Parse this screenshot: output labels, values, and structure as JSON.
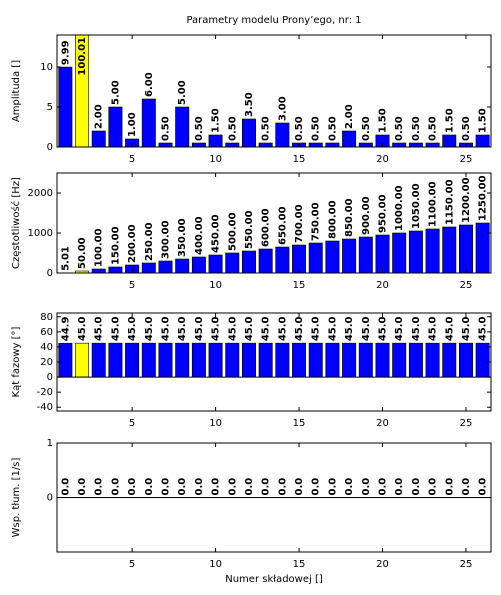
{
  "chart_data": [
    {
      "type": "bar",
      "title": "Parametry modelu Prony’ego, nr: 1",
      "ylabel": "Amplituda []",
      "x": [
        1,
        2,
        3,
        4,
        5,
        6,
        7,
        8,
        9,
        10,
        11,
        12,
        13,
        14,
        15,
        16,
        17,
        18,
        19,
        20,
        21,
        22,
        23,
        24,
        25,
        26
      ],
      "values": [
        9.99,
        100.01,
        2,
        5,
        1,
        6,
        0.5,
        5,
        0.5,
        1.5,
        0.5,
        3.5,
        0.5,
        3,
        0.5,
        0.5,
        0.5,
        2,
        0.5,
        1.5,
        0.5,
        0.5,
        0.5,
        1.5,
        0.5,
        1.5
      ],
      "value_labels": [
        "9.99",
        "100.01",
        "2.00",
        "5.00",
        "1.00",
        "6.00",
        "0.50",
        "5.00",
        "0.50",
        "1.50",
        "0.50",
        "3.50",
        "0.50",
        "3.00",
        "0.50",
        "0.50",
        "0.50",
        "2.00",
        "0.50",
        "1.50",
        "0.50",
        "0.50",
        "0.50",
        "1.50",
        "0.50",
        "1.50"
      ],
      "colors": [
        "#0000ff",
        "#ffff00",
        "#0000ff",
        "#0000ff",
        "#0000ff",
        "#0000ff",
        "#0000ff",
        "#0000ff",
        "#0000ff",
        "#0000ff",
        "#0000ff",
        "#0000ff",
        "#0000ff",
        "#0000ff",
        "#0000ff",
        "#0000ff",
        "#0000ff",
        "#0000ff",
        "#0000ff",
        "#0000ff",
        "#0000ff",
        "#0000ff",
        "#0000ff",
        "#0000ff",
        "#0000ff",
        "#0000ff"
      ],
      "xlim": [
        0.5,
        26.5
      ],
      "xticks": [
        5,
        10,
        15,
        20,
        25
      ],
      "ylim": [
        0,
        14
      ],
      "yticks": [
        0,
        5,
        10
      ]
    },
    {
      "type": "bar",
      "ylabel": "Częstotliwość [Hz]",
      "x": [
        1,
        2,
        3,
        4,
        5,
        6,
        7,
        8,
        9,
        10,
        11,
        12,
        13,
        14,
        15,
        16,
        17,
        18,
        19,
        20,
        21,
        22,
        23,
        24,
        25,
        26
      ],
      "values": [
        5.01,
        50,
        100,
        150,
        200,
        250,
        300,
        350,
        400,
        450,
        500,
        550,
        600,
        650,
        700,
        750,
        800,
        850,
        900,
        950,
        1000,
        1050,
        1100,
        1150,
        1200,
        1250
      ],
      "value_labels": [
        "5.01",
        "50.00",
        "100.00",
        "150.00",
        "200.00",
        "250.00",
        "300.00",
        "350.00",
        "400.00",
        "450.00",
        "500.00",
        "550.00",
        "600.00",
        "650.00",
        "700.00",
        "750.00",
        "800.00",
        "850.00",
        "900.00",
        "950.00",
        "1000.00",
        "1050.00",
        "1100.00",
        "1150.00",
        "1200.00",
        "1250.00"
      ],
      "colors": [
        "#0000ff",
        "#ffff00",
        "#0000ff",
        "#0000ff",
        "#0000ff",
        "#0000ff",
        "#0000ff",
        "#0000ff",
        "#0000ff",
        "#0000ff",
        "#0000ff",
        "#0000ff",
        "#0000ff",
        "#0000ff",
        "#0000ff",
        "#0000ff",
        "#0000ff",
        "#0000ff",
        "#0000ff",
        "#0000ff",
        "#0000ff",
        "#0000ff",
        "#0000ff",
        "#0000ff",
        "#0000ff",
        "#0000ff"
      ],
      "xlim": [
        0.5,
        26.5
      ],
      "xticks": [
        5,
        10,
        15,
        20,
        25
      ],
      "ylim": [
        0,
        2500
      ],
      "yticks": [
        0,
        1000,
        2000
      ]
    },
    {
      "type": "bar",
      "ylabel": "Kąt fazowy [°]",
      "x": [
        1,
        2,
        3,
        4,
        5,
        6,
        7,
        8,
        9,
        10,
        11,
        12,
        13,
        14,
        15,
        16,
        17,
        18,
        19,
        20,
        21,
        22,
        23,
        24,
        25,
        26
      ],
      "values": [
        44.9,
        45,
        45,
        45,
        45,
        45,
        45,
        45,
        45,
        45,
        45,
        45,
        45,
        45,
        45,
        45,
        45,
        45,
        45,
        45,
        45,
        45,
        45,
        45,
        45,
        45
      ],
      "value_labels": [
        "44.9",
        "45.0",
        "45.0",
        "45.0",
        "45.0",
        "45.0",
        "45.0",
        "45.0",
        "45.0",
        "45.0",
        "45.0",
        "45.0",
        "45.0",
        "45.0",
        "45.0",
        "45.0",
        "45.0",
        "45.0",
        "45.0",
        "45.0",
        "45.0",
        "45.0",
        "45.0",
        "45.0",
        "45.0",
        "45.0"
      ],
      "colors": [
        "#0000ff",
        "#ffff00",
        "#0000ff",
        "#0000ff",
        "#0000ff",
        "#0000ff",
        "#0000ff",
        "#0000ff",
        "#0000ff",
        "#0000ff",
        "#0000ff",
        "#0000ff",
        "#0000ff",
        "#0000ff",
        "#0000ff",
        "#0000ff",
        "#0000ff",
        "#0000ff",
        "#0000ff",
        "#0000ff",
        "#0000ff",
        "#0000ff",
        "#0000ff",
        "#0000ff",
        "#0000ff",
        "#0000ff"
      ],
      "xlim": [
        0.5,
        26.5
      ],
      "xticks": [
        5,
        10,
        15,
        20,
        25
      ],
      "ylim": [
        -45,
        85
      ],
      "yticks": [
        -40,
        -20,
        0,
        20,
        40,
        60,
        80
      ]
    },
    {
      "type": "bar",
      "ylabel": "Wsp. tłum. [1/s]",
      "xlabel": "Numer składowej []",
      "x": [
        1,
        2,
        3,
        4,
        5,
        6,
        7,
        8,
        9,
        10,
        11,
        12,
        13,
        14,
        15,
        16,
        17,
        18,
        19,
        20,
        21,
        22,
        23,
        24,
        25,
        26
      ],
      "values": [
        0,
        0,
        0,
        0,
        0,
        0,
        0,
        0,
        0,
        0,
        0,
        0,
        0,
        0,
        0,
        0,
        0,
        0,
        0,
        0,
        0,
        0,
        0,
        0,
        0,
        0
      ],
      "value_labels": [
        "0.0",
        "0.0",
        "0.0",
        "0.0",
        "0.0",
        "0.0",
        "0.0",
        "0.0",
        "0.0",
        "0.0",
        "0.0",
        "0.0",
        "0.0",
        "0.0",
        "0.0",
        "0.0",
        "0.0",
        "0.0",
        "0.0",
        "0.0",
        "0.0",
        "0.0",
        "0.0",
        "0.0",
        "0.0",
        "0.0"
      ],
      "colors": [
        "#0000ff",
        "#0000ff",
        "#0000ff",
        "#0000ff",
        "#0000ff",
        "#0000ff",
        "#0000ff",
        "#0000ff",
        "#0000ff",
        "#0000ff",
        "#0000ff",
        "#0000ff",
        "#0000ff",
        "#0000ff",
        "#0000ff",
        "#0000ff",
        "#0000ff",
        "#0000ff",
        "#0000ff",
        "#0000ff",
        "#0000ff",
        "#0000ff",
        "#0000ff",
        "#0000ff",
        "#0000ff",
        "#0000ff"
      ],
      "xlim": [
        0.5,
        26.5
      ],
      "xticks": [
        5,
        10,
        15,
        20,
        25
      ],
      "ylim": [
        -1,
        1
      ],
      "yticks": [
        0,
        1
      ]
    }
  ]
}
